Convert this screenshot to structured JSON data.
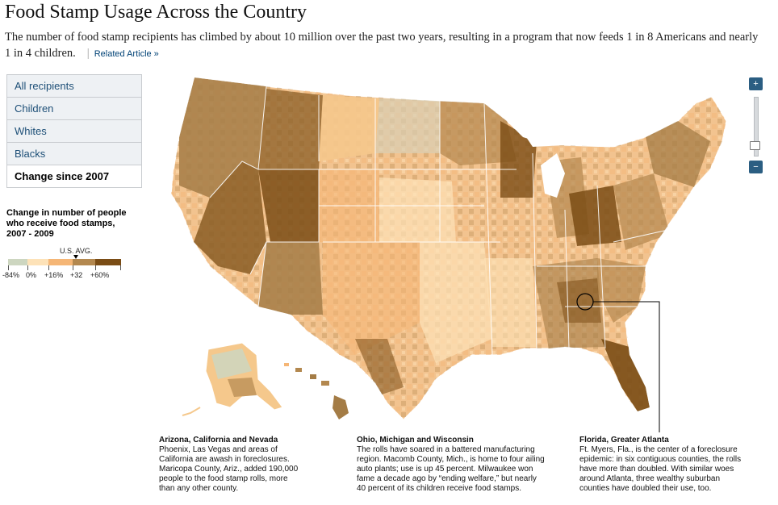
{
  "header": {
    "title": "Food Stamp Usage Across the Country",
    "subtitle": "The number of food stamp recipients has climbed by about 10 million over the past two years, resulting in a program that now feeds 1 in 8 Americans and nearly 1 in 4 children.",
    "separator": "|",
    "related_link": "Related Article »"
  },
  "menu": {
    "items": [
      {
        "label": "All recipients"
      },
      {
        "label": "Children"
      },
      {
        "label": "Whites"
      },
      {
        "label": "Blacks"
      },
      {
        "label": "Change since 2007"
      }
    ],
    "selected": "Change since 2007"
  },
  "legend": {
    "title": "Change in number of people who receive food stamps, 2007 - 2009",
    "avg_label": "U.S. AVG.",
    "ticks": [
      "-84%",
      "0%",
      "+16%",
      "+32",
      "+60%"
    ],
    "colors": [
      "#cdd6c0",
      "#fde2b8",
      "#f5b676",
      "#b3884f",
      "#7a4c15"
    ]
  },
  "zoom": {
    "in_glyph": "+",
    "out_glyph": "−"
  },
  "callouts": [
    {
      "title": "Arizona, California and Nevada",
      "lines": [
        "Phoenix, Las Vegas and areas of",
        "California are awash in foreclosures.",
        "Maricopa County, Ariz., added 190,000",
        "people to the food stamp rolls, more",
        "than any other county."
      ]
    },
    {
      "title": "Ohio, Michigan and Wisconsin",
      "lines": [
        "The rolls have soared in a battered manufacturing",
        "region. Macomb County, Mich., is home to four ailing",
        "auto plants; use is up 45 percent. Milwaukee won",
        "fame a decade ago by “ending welfare,” but nearly",
        "40 percent of its children receive food stamps."
      ]
    },
    {
      "title": "Florida, Greater Atlanta",
      "lines": [
        "Ft. Myers, Fla., is the center of a foreclosure",
        "epidemic: in six contiguous counties, the rolls",
        "have more than doubled. With similar woes",
        "around Atlanta, three wealthy suburban",
        "counties have doubled their use, too."
      ]
    }
  ]
}
